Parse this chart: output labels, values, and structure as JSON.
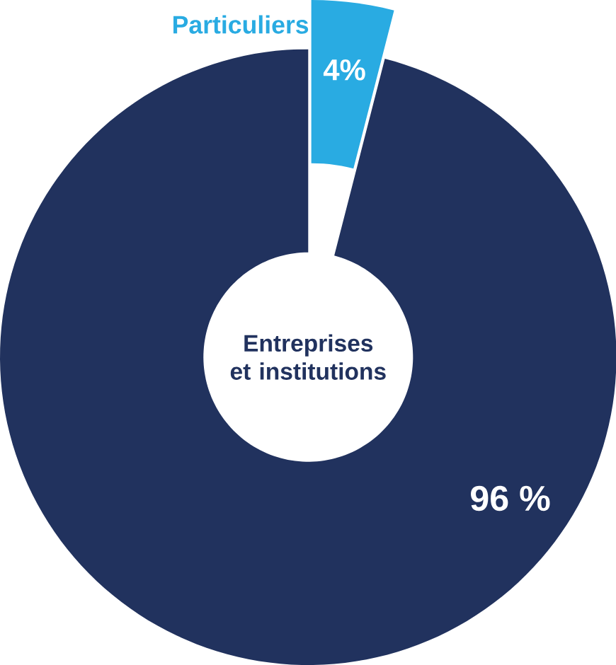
{
  "chart_data": {
    "type": "donut",
    "categories": [
      "Particuliers",
      "Entreprises et institutions"
    ],
    "values": [
      4,
      96
    ],
    "colors": [
      "#29abe2",
      "#21325e"
    ],
    "value_labels": [
      "4%",
      "96 %"
    ]
  }
}
